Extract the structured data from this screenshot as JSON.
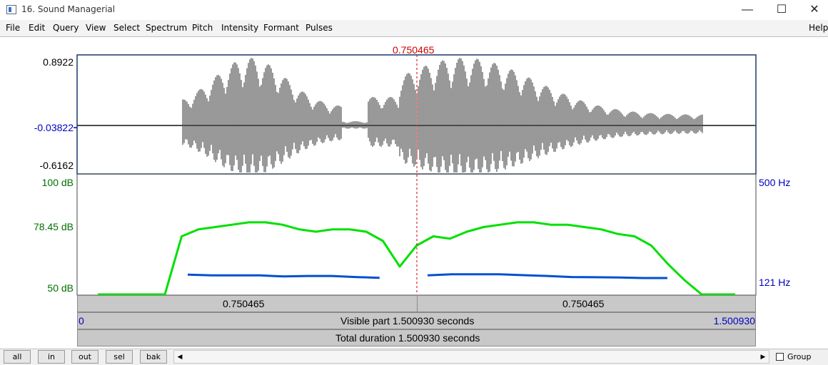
{
  "window": {
    "title": "16. Sound Managerial"
  },
  "menu": [
    "File",
    "Edit",
    "Query",
    "View",
    "Select",
    "Spectrum",
    "Pitch",
    "Intensity",
    "Formant",
    "Pulses"
  ],
  "help_label": "Help",
  "cursor": {
    "time_label": "0.750465"
  },
  "waveform": {
    "ymax": "0.8922",
    "ymid": "-0.03822",
    "ymin": "-0.6162"
  },
  "intensity_axis": {
    "top": "100 dB",
    "mid": "78.45 dB",
    "bottom": "50 dB"
  },
  "pitch_axis": {
    "top": "500 Hz",
    "bottom": "121 Hz"
  },
  "time_bar": {
    "left": "0.750465",
    "right": "0.750465"
  },
  "visible": {
    "start": "0",
    "label": "Visible part 1.500930 seconds",
    "end": "1.500930"
  },
  "total": {
    "label": "Total duration 1.500930 seconds"
  },
  "buttons": {
    "all": "all",
    "in": "in",
    "out": "out",
    "sel": "sel",
    "bak": "bak"
  },
  "group_label": "Group",
  "colors": {
    "intensity": "#00e000",
    "pitch": "#0050d0",
    "cursor": "#d00000",
    "axis_blue": "#0000c0",
    "axis_green": "#007000",
    "frame": "#1a3a6a"
  },
  "intensity_db": [
    50,
    50,
    50,
    50,
    50,
    75,
    78,
    79,
    80,
    81,
    81,
    80,
    78,
    77,
    78,
    78,
    77,
    73,
    62,
    71,
    75,
    74,
    77,
    79,
    80,
    81,
    81,
    80,
    80,
    79,
    78,
    76,
    75,
    71,
    63,
    56,
    50,
    50,
    50
  ],
  "pitch_hz": [
    150,
    147,
    147,
    147,
    143,
    145,
    145,
    141,
    138,
    null,
    147,
    151,
    151,
    151,
    148,
    145,
    141,
    140,
    139,
    137,
    137
  ]
}
